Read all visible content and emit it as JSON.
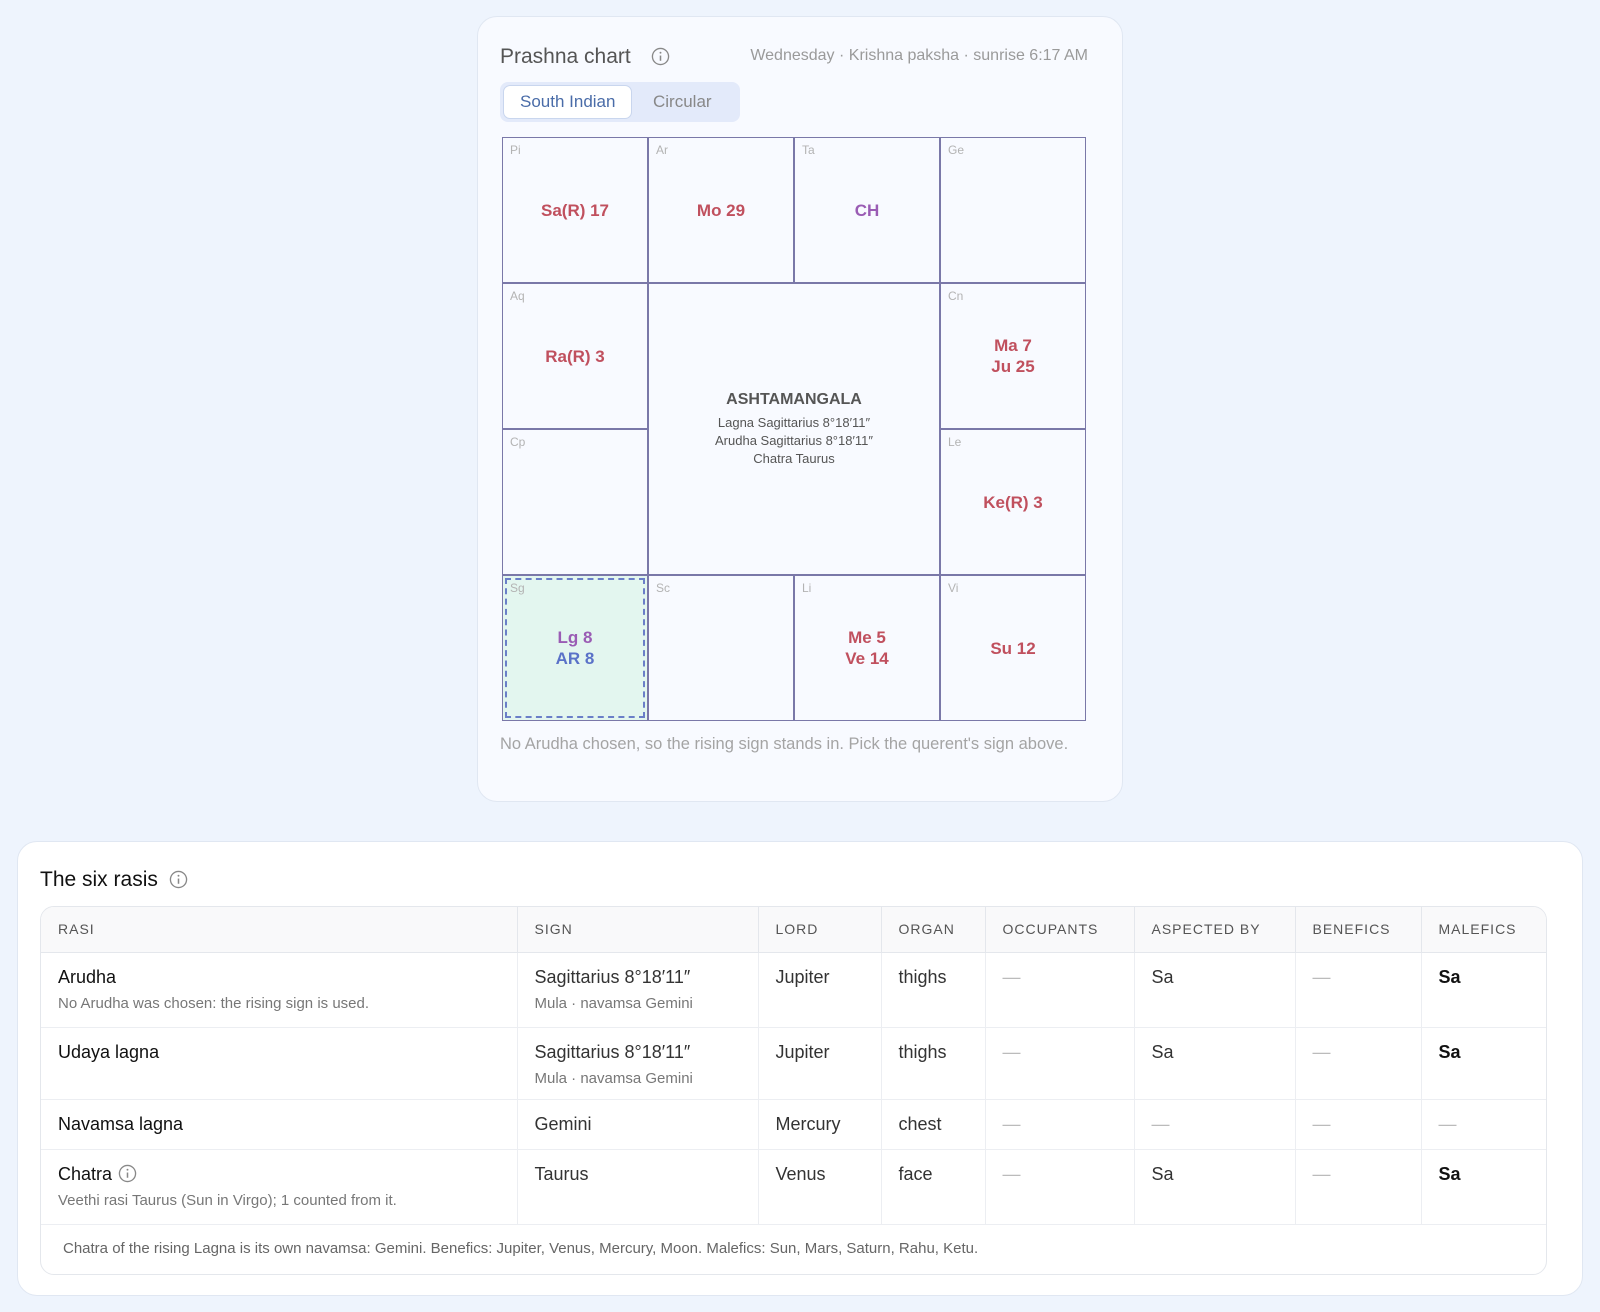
{
  "prashna_chart": {
    "title": "Prashna chart",
    "subtitle": "Wednesday · Krishna paksha · sunrise 6:17 AM",
    "tabs": [
      "South Indian",
      "Circular"
    ],
    "active_tab": 0,
    "cells": [
      {
        "sign": "Pi",
        "planets": [
          {
            "text": "Sa(R) 17",
            "color": "#c0505e"
          }
        ]
      },
      {
        "sign": "Ar",
        "planets": [
          {
            "text": "Mo 29",
            "color": "#c0505e"
          }
        ]
      },
      {
        "sign": "Ta",
        "planets": [
          {
            "text": "CH",
            "color": "#9a5cb4"
          }
        ]
      },
      {
        "sign": "Ge",
        "planets": []
      },
      {
        "sign": "Aq",
        "planets": [
          {
            "text": "Ra(R) 3",
            "color": "#c0505e"
          }
        ]
      },
      {
        "sign": "Cn",
        "planets": [
          {
            "text": "Ma 7",
            "color": "#c0505e"
          },
          {
            "text": "Ju 25",
            "color": "#c0505e"
          }
        ]
      },
      {
        "sign": "Cp",
        "planets": []
      },
      {
        "sign": "Le",
        "planets": [
          {
            "text": "Ke(R) 3",
            "color": "#c0505e"
          }
        ]
      },
      {
        "sign": "Sg",
        "planets": [
          {
            "text": "Lg 8",
            "color": "#9a5cb4"
          },
          {
            "text": "AR 8",
            "color": "#5a72c8"
          }
        ],
        "highlight": true
      },
      {
        "sign": "Sc",
        "planets": []
      },
      {
        "sign": "Li",
        "planets": [
          {
            "text": "Me 5",
            "color": "#c0505e"
          },
          {
            "text": "Ve 14",
            "color": "#c0505e"
          }
        ]
      },
      {
        "sign": "Vi",
        "planets": [
          {
            "text": "Su 12",
            "color": "#c0505e"
          }
        ]
      }
    ],
    "center": {
      "title": "ASHTAMANGALA",
      "lines": [
        "Lagna Sagittarius 8°18′11″",
        "Arudha Sagittarius 8°18′11″",
        "Chatra Taurus"
      ]
    },
    "note": "No Arudha chosen, so the rising sign stands in. Pick the querent's sign above."
  },
  "six_rasis": {
    "title": "The six rasis",
    "headers": [
      "RASI",
      "SIGN",
      "LORD",
      "ORGAN",
      "OCCUPANTS",
      "ASPECTED BY",
      "BENEFICS",
      "MALEFICS"
    ],
    "rows": [
      {
        "rasi": "Arudha",
        "rasi_note": "No Arudha was chosen: the rising sign is used.",
        "sign": "Sagittarius 8°18′11″",
        "sign_note": "Mula · navamsa Gemini",
        "lord": "Jupiter",
        "organ": "thighs",
        "occupants": "—",
        "aspected_by": "Sa",
        "benefics": "—",
        "malefics": "Sa"
      },
      {
        "rasi": "Udaya lagna",
        "sign": "Sagittarius 8°18′11″",
        "sign_note": "Mula · navamsa Gemini",
        "lord": "Jupiter",
        "organ": "thighs",
        "occupants": "—",
        "aspected_by": "Sa",
        "benefics": "—",
        "malefics": "Sa"
      },
      {
        "rasi": "Navamsa lagna",
        "sign": "Gemini",
        "lord": "Mercury",
        "organ": "chest",
        "occupants": "—",
        "aspected_by": "—",
        "benefics": "—",
        "malefics": "—"
      },
      {
        "rasi": "Chatra",
        "rasi_note": "Veethi rasi Taurus (Sun in Virgo); 1 counted from it.",
        "sign": "Taurus",
        "lord": "Venus",
        "organ": "face",
        "occupants": "—",
        "aspected_by": "Sa",
        "benefics": "—",
        "malefics": "Sa",
        "info": true
      }
    ],
    "footer": "Chatra of the rising Lagna is its own navamsa: Gemini. Benefics: Jupiter, Venus, Mercury, Moon. Malefics: Sun, Mars, Saturn, Rahu, Ketu."
  }
}
